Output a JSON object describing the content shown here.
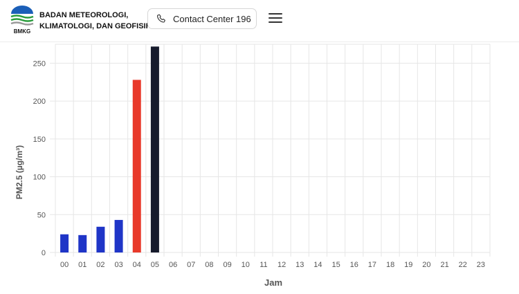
{
  "header": {
    "logo_text": "BMKG",
    "org_line1": "BADAN METEOROLOGI,",
    "org_line2": "KLIMATOLOGI, DAN GEOFISIKA",
    "contact_label": "Contact Center 196",
    "phone_icon": "phone-icon",
    "menu_icon": "hamburger-menu-icon"
  },
  "colors": {
    "blue": "#1f35c7",
    "red": "#e8392a",
    "dark": "#161b2c",
    "grid": "#e6e6e6",
    "axis_text": "#555555"
  },
  "chart_data": {
    "type": "bar",
    "xlabel": "Jam",
    "ylabel": "PM2.5 (µg/m³)",
    "ylim": [
      0,
      275
    ],
    "yticks": [
      0,
      50,
      100,
      150,
      200,
      250
    ],
    "grid": true,
    "categories": [
      "00",
      "01",
      "02",
      "03",
      "04",
      "05",
      "06",
      "07",
      "08",
      "09",
      "10",
      "11",
      "12",
      "13",
      "14",
      "15",
      "16",
      "17",
      "18",
      "19",
      "20",
      "21",
      "22",
      "23"
    ],
    "values": [
      24,
      23,
      34,
      43,
      228,
      272,
      null,
      null,
      null,
      null,
      null,
      null,
      null,
      null,
      null,
      null,
      null,
      null,
      null,
      null,
      null,
      null,
      null,
      null
    ],
    "bar_colors": [
      "#1f35c7",
      "#1f35c7",
      "#1f35c7",
      "#1f35c7",
      "#e8392a",
      "#161b2c"
    ]
  }
}
